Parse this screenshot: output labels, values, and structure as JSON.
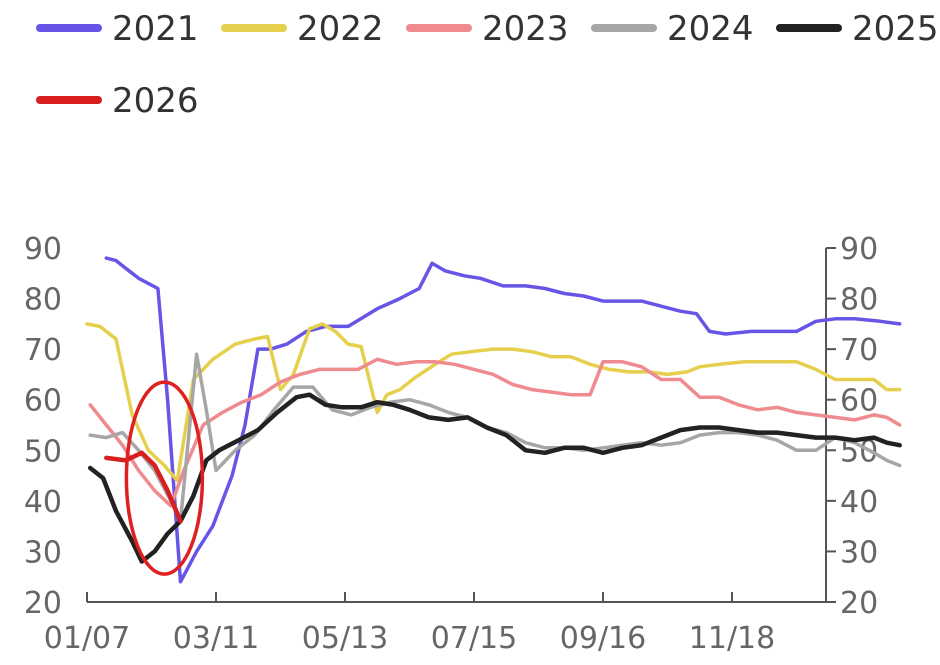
{
  "chart_data": {
    "type": "line",
    "x_ticks": [
      "01/07",
      "03/11",
      "05/13",
      "07/15",
      "09/16",
      "11/18"
    ],
    "ylim": [
      20,
      90
    ],
    "y_ticks": [
      20,
      30,
      40,
      50,
      60,
      70,
      80,
      90
    ],
    "y_ticks_right": [
      20,
      30,
      40,
      50,
      60,
      70,
      80,
      90
    ],
    "legend_position": "top",
    "grid": false,
    "annotation": "red-ellipse-around-early-february-dip",
    "colors": {
      "2021": "#6655e6",
      "2022": "#e6cf4d",
      "2023": "#ef8a8f",
      "2024": "#a6a6a6",
      "2025": "#222222",
      "2026": "#d81e1e",
      "circle": "#e02020"
    },
    "series": [
      {
        "name": "2021",
        "points": [
          [
            0.3,
            88
          ],
          [
            0.45,
            87.5
          ],
          [
            0.6,
            86
          ],
          [
            0.8,
            84
          ],
          [
            1.1,
            82
          ],
          [
            1.25,
            60
          ],
          [
            1.45,
            24
          ],
          [
            1.7,
            30
          ],
          [
            1.95,
            35
          ],
          [
            2.25,
            45
          ],
          [
            2.45,
            55
          ],
          [
            2.65,
            70
          ],
          [
            2.85,
            70
          ],
          [
            3.1,
            71
          ],
          [
            3.4,
            73.5
          ],
          [
            3.7,
            74.5
          ],
          [
            4.05,
            74.5
          ],
          [
            4.5,
            78
          ],
          [
            4.85,
            80
          ],
          [
            5.15,
            82
          ],
          [
            5.35,
            87
          ],
          [
            5.55,
            85.5
          ],
          [
            5.85,
            84.5
          ],
          [
            6.1,
            84
          ],
          [
            6.45,
            82.5
          ],
          [
            6.8,
            82.5
          ],
          [
            7.1,
            82
          ],
          [
            7.4,
            81
          ],
          [
            7.7,
            80.5
          ],
          [
            8.0,
            79.5
          ],
          [
            8.3,
            79.5
          ],
          [
            8.6,
            79.5
          ],
          [
            8.9,
            78.5
          ],
          [
            9.2,
            77.5
          ],
          [
            9.45,
            77
          ],
          [
            9.65,
            73.5
          ],
          [
            9.9,
            73
          ],
          [
            10.3,
            73.5
          ],
          [
            10.7,
            73.5
          ],
          [
            11.0,
            73.5
          ],
          [
            11.3,
            75.5
          ],
          [
            11.6,
            76
          ],
          [
            11.9,
            76
          ],
          [
            12.3,
            75.5
          ],
          [
            12.6,
            75
          ]
        ]
      },
      {
        "name": "2022",
        "points": [
          [
            0.0,
            75
          ],
          [
            0.2,
            74.5
          ],
          [
            0.45,
            72
          ],
          [
            0.7,
            57
          ],
          [
            0.95,
            50
          ],
          [
            1.2,
            47
          ],
          [
            1.4,
            44
          ],
          [
            1.65,
            64
          ],
          [
            1.95,
            68
          ],
          [
            2.3,
            71
          ],
          [
            2.6,
            72
          ],
          [
            2.8,
            72.5
          ],
          [
            3.0,
            62
          ],
          [
            3.2,
            65
          ],
          [
            3.45,
            74
          ],
          [
            3.65,
            75
          ],
          [
            3.85,
            73.5
          ],
          [
            4.05,
            71
          ],
          [
            4.25,
            70.5
          ],
          [
            4.5,
            57.5
          ],
          [
            4.65,
            61
          ],
          [
            4.85,
            62
          ],
          [
            5.1,
            64.5
          ],
          [
            5.4,
            67
          ],
          [
            5.65,
            69
          ],
          [
            5.95,
            69.5
          ],
          [
            6.3,
            70
          ],
          [
            6.6,
            70
          ],
          [
            6.9,
            69.5
          ],
          [
            7.2,
            68.5
          ],
          [
            7.5,
            68.5
          ],
          [
            7.8,
            67
          ],
          [
            8.1,
            66
          ],
          [
            8.4,
            65.5
          ],
          [
            8.7,
            65.5
          ],
          [
            9.0,
            65
          ],
          [
            9.3,
            65.5
          ],
          [
            9.5,
            66.5
          ],
          [
            9.8,
            67
          ],
          [
            10.2,
            67.5
          ],
          [
            10.6,
            67.5
          ],
          [
            11.0,
            67.5
          ],
          [
            11.3,
            66
          ],
          [
            11.6,
            64
          ],
          [
            11.9,
            64
          ],
          [
            12.2,
            64
          ],
          [
            12.4,
            62
          ],
          [
            12.6,
            62
          ]
        ]
      },
      {
        "name": "2023",
        "points": [
          [
            0.05,
            59
          ],
          [
            0.3,
            55
          ],
          [
            0.55,
            51
          ],
          [
            0.8,
            46
          ],
          [
            1.05,
            42
          ],
          [
            1.3,
            39
          ],
          [
            1.5,
            46
          ],
          [
            1.8,
            55
          ],
          [
            2.1,
            57.5
          ],
          [
            2.4,
            59.5
          ],
          [
            2.7,
            61
          ],
          [
            3.0,
            63.5
          ],
          [
            3.3,
            65
          ],
          [
            3.6,
            66
          ],
          [
            3.9,
            66
          ],
          [
            4.2,
            66
          ],
          [
            4.5,
            68
          ],
          [
            4.8,
            67
          ],
          [
            5.1,
            67.5
          ],
          [
            5.4,
            67.5
          ],
          [
            5.7,
            67
          ],
          [
            6.0,
            66
          ],
          [
            6.3,
            65
          ],
          [
            6.6,
            63
          ],
          [
            6.9,
            62
          ],
          [
            7.2,
            61.5
          ],
          [
            7.5,
            61
          ],
          [
            7.8,
            61
          ],
          [
            8.0,
            67.5
          ],
          [
            8.3,
            67.5
          ],
          [
            8.6,
            66.5
          ],
          [
            8.9,
            64
          ],
          [
            9.2,
            64
          ],
          [
            9.5,
            60.5
          ],
          [
            9.8,
            60.5
          ],
          [
            10.1,
            59
          ],
          [
            10.4,
            58
          ],
          [
            10.7,
            58.5
          ],
          [
            11.0,
            57.5
          ],
          [
            11.3,
            57
          ],
          [
            11.6,
            56.5
          ],
          [
            11.9,
            56
          ],
          [
            12.2,
            57
          ],
          [
            12.4,
            56.5
          ],
          [
            12.6,
            55
          ]
        ]
      },
      {
        "name": "2024",
        "points": [
          [
            0.05,
            53
          ],
          [
            0.3,
            52.5
          ],
          [
            0.55,
            53.5
          ],
          [
            0.8,
            50
          ],
          [
            1.05,
            46
          ],
          [
            1.3,
            40
          ],
          [
            1.45,
            36
          ],
          [
            1.7,
            69
          ],
          [
            1.85,
            58
          ],
          [
            2.0,
            46
          ],
          [
            2.3,
            50
          ],
          [
            2.6,
            53
          ],
          [
            2.9,
            58
          ],
          [
            3.2,
            62.5
          ],
          [
            3.5,
            62.5
          ],
          [
            3.8,
            58
          ],
          [
            4.1,
            57
          ],
          [
            4.4,
            58.5
          ],
          [
            4.7,
            59.5
          ],
          [
            5.0,
            60
          ],
          [
            5.3,
            59
          ],
          [
            5.6,
            57.5
          ],
          [
            5.9,
            56.5
          ],
          [
            6.2,
            54.5
          ],
          [
            6.5,
            53.5
          ],
          [
            6.8,
            51.5
          ],
          [
            7.1,
            50.5
          ],
          [
            7.4,
            50.5
          ],
          [
            7.7,
            50
          ],
          [
            8.0,
            50.5
          ],
          [
            8.3,
            51
          ],
          [
            8.6,
            51.5
          ],
          [
            8.9,
            51
          ],
          [
            9.2,
            51.5
          ],
          [
            9.5,
            53
          ],
          [
            9.8,
            53.5
          ],
          [
            10.1,
            53.5
          ],
          [
            10.4,
            53
          ],
          [
            10.7,
            52
          ],
          [
            11.0,
            50
          ],
          [
            11.3,
            50
          ],
          [
            11.6,
            52.5
          ],
          [
            11.9,
            51.5
          ],
          [
            12.2,
            49.5
          ],
          [
            12.4,
            48
          ],
          [
            12.6,
            47
          ]
        ]
      },
      {
        "name": "2025",
        "points": [
          [
            0.05,
            46.5
          ],
          [
            0.25,
            44.5
          ],
          [
            0.45,
            38
          ],
          [
            0.7,
            32
          ],
          [
            0.85,
            28
          ],
          [
            1.05,
            30
          ],
          [
            1.25,
            33.5
          ],
          [
            1.45,
            36
          ],
          [
            1.65,
            41
          ],
          [
            1.85,
            48
          ],
          [
            2.05,
            50
          ],
          [
            2.35,
            52
          ],
          [
            2.65,
            54
          ],
          [
            2.95,
            57.5
          ],
          [
            3.25,
            60.5
          ],
          [
            3.45,
            61
          ],
          [
            3.7,
            59
          ],
          [
            3.95,
            58.5
          ],
          [
            4.25,
            58.5
          ],
          [
            4.5,
            59.5
          ],
          [
            4.75,
            59
          ],
          [
            5.0,
            58
          ],
          [
            5.3,
            56.5
          ],
          [
            5.6,
            56
          ],
          [
            5.9,
            56.5
          ],
          [
            6.2,
            54.5
          ],
          [
            6.5,
            53
          ],
          [
            6.8,
            50
          ],
          [
            7.1,
            49.5
          ],
          [
            7.4,
            50.5
          ],
          [
            7.7,
            50.5
          ],
          [
            8.0,
            49.5
          ],
          [
            8.3,
            50.5
          ],
          [
            8.6,
            51
          ],
          [
            8.9,
            52.5
          ],
          [
            9.2,
            54
          ],
          [
            9.5,
            54.5
          ],
          [
            9.8,
            54.5
          ],
          [
            10.1,
            54
          ],
          [
            10.4,
            53.5
          ],
          [
            10.7,
            53.5
          ],
          [
            11.0,
            53
          ],
          [
            11.3,
            52.5
          ],
          [
            11.6,
            52.5
          ],
          [
            11.9,
            52
          ],
          [
            12.2,
            52.5
          ],
          [
            12.4,
            51.5
          ],
          [
            12.6,
            51
          ]
        ]
      },
      {
        "name": "2026",
        "points": [
          [
            0.3,
            48.5
          ],
          [
            0.6,
            48
          ],
          [
            0.85,
            49.5
          ],
          [
            1.05,
            47
          ],
          [
            1.25,
            42
          ],
          [
            1.45,
            36
          ]
        ]
      }
    ]
  }
}
